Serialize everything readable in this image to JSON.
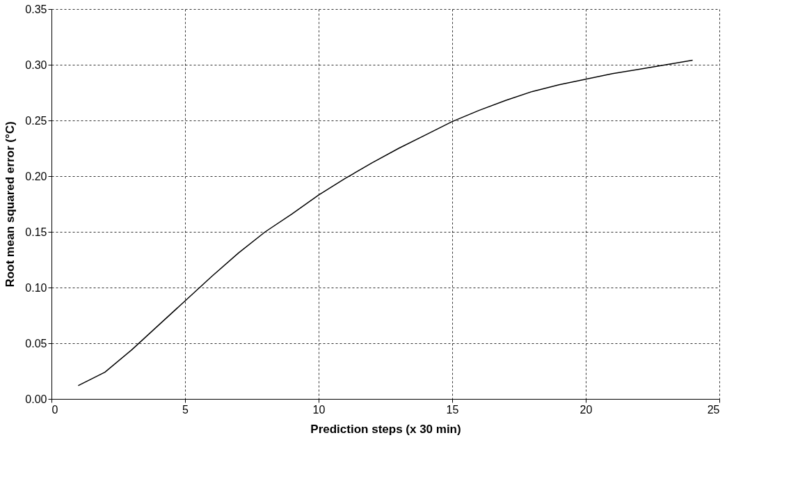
{
  "chart_data": {
    "type": "line",
    "xlabel": "Prediction steps (x 30 min)",
    "ylabel": "Root mean squared error (°C)",
    "x": [
      1,
      2,
      3,
      4,
      5,
      6,
      7,
      8,
      9,
      10,
      11,
      12,
      13,
      14,
      15,
      16,
      17,
      18,
      19,
      20,
      21,
      22,
      23,
      24
    ],
    "series": [
      {
        "color": "#000000",
        "values": [
          0.012,
          0.024,
          0.044,
          0.066,
          0.088,
          0.11,
          0.131,
          0.15,
          0.166,
          0.183,
          0.198,
          0.212,
          0.225,
          0.237,
          0.249,
          0.259,
          0.268,
          0.276,
          0.282,
          0.287,
          0.292,
          0.296,
          0.3,
          0.304
        ]
      }
    ],
    "xlim": [
      0,
      25
    ],
    "xticks": [
      0,
      5,
      10,
      15,
      20,
      25
    ],
    "ylim": [
      0,
      0.35
    ],
    "yticks": [
      {
        "value": 0,
        "label": "0.00"
      },
      {
        "value": 0.05,
        "label": "0.05"
      },
      {
        "value": 0.1,
        "label": "0.10"
      },
      {
        "value": 0.15,
        "label": "0.15"
      },
      {
        "value": 0.2,
        "label": "0.20"
      },
      {
        "value": 0.25,
        "label": "0.25"
      },
      {
        "value": 0.3,
        "label": "0.30"
      },
      {
        "value": 0.35,
        "label": "0.35"
      }
    ],
    "grid": true,
    "marker": "none",
    "line_style": "solid",
    "legend": false
  }
}
